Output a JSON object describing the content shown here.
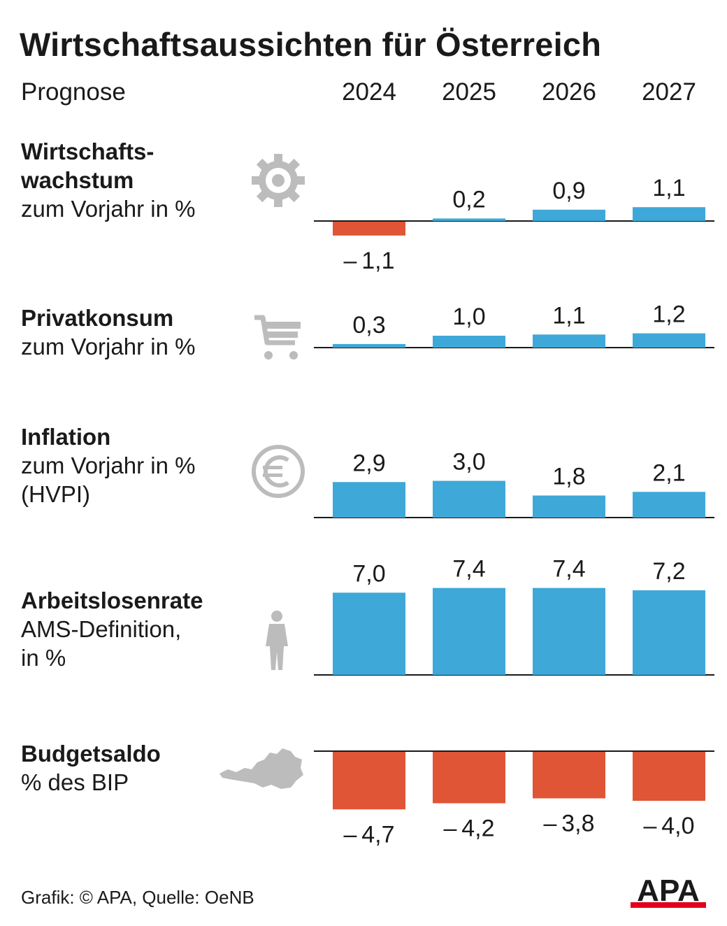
{
  "title": "Wirtschaftsaussichten für Österreich",
  "header_label": "Prognose",
  "footer": "Grafik: © APA, Quelle: OeNB",
  "logo_text": "APA",
  "colors": {
    "positive": "#3ea8d8",
    "negative": "#df5536",
    "icon": "#bcbcbc",
    "logo_red": "#e2001a"
  },
  "chart_data": {
    "type": "bar",
    "categories": [
      "2024",
      "2025",
      "2026",
      "2027"
    ],
    "panels": [
      {
        "title": "Wirtschafts-\nwachstum",
        "subtitle": "zum Vorjahr in %",
        "icon": "gear-icon",
        "values": [
          -1.1,
          0.2,
          0.9,
          1.1
        ],
        "labels": [
          "– 1,1",
          "0,2",
          "0,9",
          "1,1"
        ]
      },
      {
        "title": "Privatkonsum",
        "subtitle": "zum Vorjahr in %",
        "icon": "shopping-cart-icon",
        "values": [
          0.3,
          1.0,
          1.1,
          1.2
        ],
        "labels": [
          "0,3",
          "1,0",
          "1,1",
          "1,2"
        ]
      },
      {
        "title": "Inflation",
        "subtitle": "zum Vorjahr in %\n(HVPI)",
        "icon": "euro-icon",
        "values": [
          2.9,
          3.0,
          1.8,
          2.1
        ],
        "labels": [
          "2,9",
          "3,0",
          "1,8",
          "2,1"
        ]
      },
      {
        "title": "Arbeitslosenrate",
        "subtitle": "AMS-Definition,\nin %",
        "icon": "person-icon",
        "values": [
          7.0,
          7.4,
          7.4,
          7.2
        ],
        "labels": [
          "7,0",
          "7,4",
          "7,4",
          "7,2"
        ]
      },
      {
        "title": "Budgetsaldo",
        "subtitle": "% des BIP",
        "icon": "austria-map-icon",
        "values": [
          -4.7,
          -4.2,
          -3.8,
          -4.0
        ],
        "labels": [
          "– 4,7",
          "– 4,2",
          "– 3,8",
          "– 4,0"
        ]
      }
    ]
  }
}
